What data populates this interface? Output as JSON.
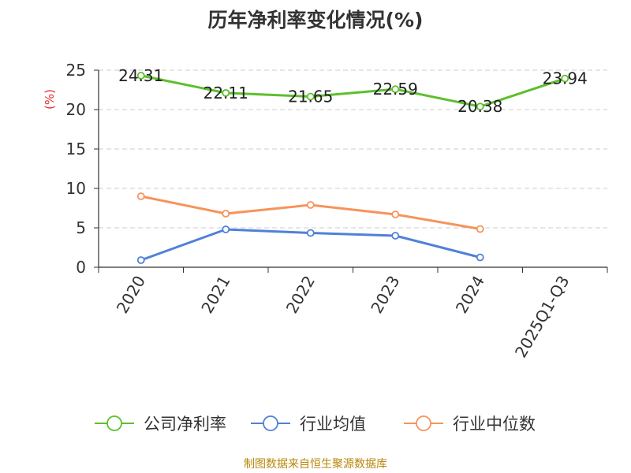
{
  "chart_data": {
    "type": "line",
    "title": "历年净利率变化情况(%)",
    "ylabel": "(%)",
    "ylim": [
      0,
      25
    ],
    "yticks": [
      0,
      5,
      10,
      15,
      20,
      25
    ],
    "categories": [
      "2020",
      "2021",
      "2022",
      "2023",
      "2024",
      "2025Q1-Q3"
    ],
    "grid": true,
    "legend_position": "bottom",
    "series": [
      {
        "name": "公司净利率",
        "color": "#5cc02d",
        "show_labels": true,
        "values": [
          24.31,
          22.11,
          21.65,
          22.59,
          20.38,
          23.94
        ]
      },
      {
        "name": "行业均值",
        "color": "#4f81d8",
        "show_labels": false,
        "values": [
          0.9,
          4.8,
          4.35,
          4.0,
          1.25,
          null
        ]
      },
      {
        "name": "行业中位数",
        "color": "#f7935b",
        "show_labels": false,
        "values": [
          9.0,
          6.8,
          7.9,
          6.7,
          4.85,
          null
        ]
      }
    ]
  },
  "source_note": "制图数据来自恒生聚源数据库"
}
